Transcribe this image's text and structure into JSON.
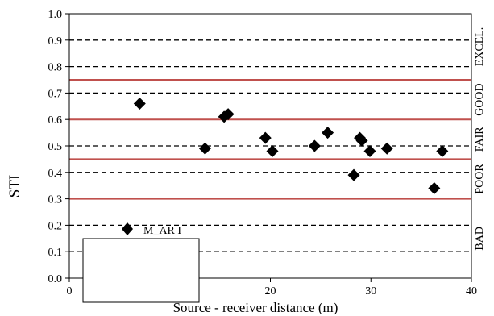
{
  "chart_data": {
    "type": "scatter",
    "xlabel": "Source - receiver distance (m)",
    "ylabel": "STI",
    "xlim": [
      0,
      40
    ],
    "ylim": [
      0,
      1
    ],
    "x_ticks": [
      "0",
      "10",
      "20",
      "30",
      "40"
    ],
    "y_ticks": [
      "0.0",
      "0.1",
      "0.2",
      "0.3",
      "0.4",
      "0.5",
      "0.6",
      "0.7",
      "0.8",
      "0.9",
      "1.0"
    ],
    "grid": "dashed horizontal at every 0.1",
    "threshold_lines": [
      0.3,
      0.45,
      0.6,
      0.75
    ],
    "threshold_color": "#c0504d",
    "categories": [
      "BAD",
      "POOR",
      "FAIR",
      "GOOD",
      "EXCEL."
    ],
    "legend_position": "bottom-left",
    "series": [
      {
        "name": "M_AR I",
        "marker": "diamond",
        "color": "#000000",
        "points": [
          [
            7.0,
            0.66
          ],
          [
            13.5,
            0.49
          ],
          [
            15.4,
            0.61
          ],
          [
            15.8,
            0.62
          ],
          [
            19.5,
            0.53
          ],
          [
            20.2,
            0.48
          ],
          [
            24.4,
            0.5
          ],
          [
            25.7,
            0.55
          ],
          [
            28.3,
            0.39
          ],
          [
            28.9,
            0.53
          ],
          [
            29.1,
            0.52
          ],
          [
            29.9,
            0.48
          ],
          [
            31.6,
            0.49
          ],
          [
            36.3,
            0.34
          ],
          [
            37.1,
            0.48
          ]
        ]
      }
    ]
  }
}
